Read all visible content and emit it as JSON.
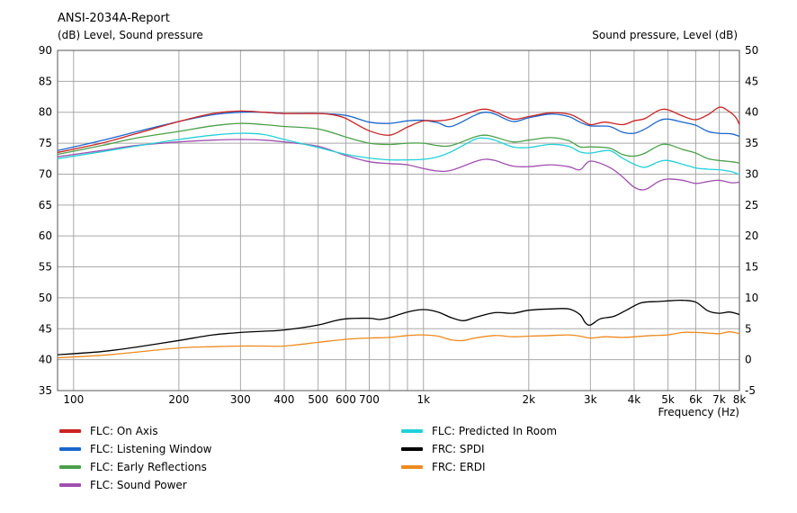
{
  "chart_data": {
    "type": "line",
    "title": "ANSI-2034A-Report",
    "ylabel_left": "(dB)  Level, Sound pressure",
    "ylabel_right": "Sound pressure, Level  (dB)",
    "xlabel": "Frequency  (Hz)",
    "x_scale": "log",
    "xlim": [
      90,
      8000
    ],
    "ylim_left": [
      35,
      90
    ],
    "ylim_right": [
      -5,
      50
    ],
    "grid": true,
    "legend_position": "bottom",
    "x_ticks": [
      {
        "v": 100,
        "label": "100"
      },
      {
        "v": 200,
        "label": "200"
      },
      {
        "v": 300,
        "label": "300"
      },
      {
        "v": 400,
        "label": "400"
      },
      {
        "v": 500,
        "label": "500"
      },
      {
        "v": 600,
        "label": "600"
      },
      {
        "v": 700,
        "label": "700"
      },
      {
        "v": 1000,
        "label": "1k"
      },
      {
        "v": 2000,
        "label": "2k"
      },
      {
        "v": 3000,
        "label": "3k"
      },
      {
        "v": 4000,
        "label": "4k"
      },
      {
        "v": 5000,
        "label": "5k"
      },
      {
        "v": 6000,
        "label": "6k"
      },
      {
        "v": 7000,
        "label": "7k"
      },
      {
        "v": 8000,
        "label": "8k"
      }
    ],
    "x_minor_grid": [
      800,
      900
    ],
    "y_left_ticks": [
      35,
      40,
      45,
      50,
      55,
      60,
      65,
      70,
      75,
      80,
      85,
      90
    ],
    "y_right_ticks": [
      -5,
      0,
      5,
      10,
      15,
      20,
      25,
      30,
      35,
      40,
      45,
      50
    ],
    "series": [
      {
        "name": "FLC: On Axis",
        "color": "#cc2222",
        "axis": "left",
        "points": [
          [
            90,
            73.5
          ],
          [
            120,
            75
          ],
          [
            150,
            76.5
          ],
          [
            200,
            78.5
          ],
          [
            250,
            79.8
          ],
          [
            300,
            80.2
          ],
          [
            350,
            80
          ],
          [
            400,
            79.8
          ],
          [
            500,
            79.8
          ],
          [
            550,
            79.6
          ],
          [
            600,
            79
          ],
          [
            700,
            77
          ],
          [
            800,
            76.3
          ],
          [
            900,
            77.6
          ],
          [
            1000,
            78.6
          ],
          [
            1100,
            78.6
          ],
          [
            1200,
            78.9
          ],
          [
            1400,
            80.2
          ],
          [
            1500,
            80.5
          ],
          [
            1600,
            80.1
          ],
          [
            1800,
            78.9
          ],
          [
            2000,
            79.3
          ],
          [
            2300,
            79.9
          ],
          [
            2600,
            79.7
          ],
          [
            2800,
            78.9
          ],
          [
            3000,
            78
          ],
          [
            3300,
            78.4
          ],
          [
            3700,
            78
          ],
          [
            4000,
            78.6
          ],
          [
            4300,
            79
          ],
          [
            4700,
            80.3
          ],
          [
            5000,
            80.4
          ],
          [
            5500,
            79.4
          ],
          [
            6000,
            78.8
          ],
          [
            6500,
            79.6
          ],
          [
            7000,
            80.8
          ],
          [
            7400,
            80.3
          ],
          [
            7800,
            79.2
          ],
          [
            8000,
            78
          ]
        ]
      },
      {
        "name": "FLC: Listening Window",
        "color": "#1a66cc",
        "axis": "left",
        "points": [
          [
            90,
            73.8
          ],
          [
            120,
            75.4
          ],
          [
            150,
            76.8
          ],
          [
            200,
            78.5
          ],
          [
            250,
            79.6
          ],
          [
            300,
            80
          ],
          [
            350,
            80
          ],
          [
            400,
            79.8
          ],
          [
            500,
            79.8
          ],
          [
            600,
            79.5
          ],
          [
            700,
            78.4
          ],
          [
            800,
            78.2
          ],
          [
            900,
            78.6
          ],
          [
            1000,
            78.7
          ],
          [
            1100,
            78.3
          ],
          [
            1200,
            77.7
          ],
          [
            1400,
            79.5
          ],
          [
            1500,
            80
          ],
          [
            1600,
            79.7
          ],
          [
            1800,
            78.5
          ],
          [
            2000,
            79.1
          ],
          [
            2300,
            79.7
          ],
          [
            2600,
            79.3
          ],
          [
            2800,
            78.4
          ],
          [
            3000,
            77.8
          ],
          [
            3400,
            77.7
          ],
          [
            3700,
            76.8
          ],
          [
            4000,
            76.6
          ],
          [
            4300,
            77.3
          ],
          [
            4700,
            78.6
          ],
          [
            5000,
            78.9
          ],
          [
            5500,
            78.4
          ],
          [
            6000,
            77.9
          ],
          [
            6500,
            76.9
          ],
          [
            7000,
            76.6
          ],
          [
            7600,
            76.5
          ],
          [
            8000,
            76.1
          ]
        ]
      },
      {
        "name": "FLC: Early Reflections",
        "color": "#4aa04a",
        "axis": "left",
        "points": [
          [
            90,
            73.2
          ],
          [
            120,
            74.6
          ],
          [
            150,
            75.8
          ],
          [
            200,
            76.9
          ],
          [
            250,
            77.8
          ],
          [
            300,
            78.2
          ],
          [
            350,
            78
          ],
          [
            400,
            77.7
          ],
          [
            500,
            77.3
          ],
          [
            600,
            76
          ],
          [
            700,
            75
          ],
          [
            800,
            74.8
          ],
          [
            900,
            75
          ],
          [
            1000,
            75
          ],
          [
            1100,
            74.6
          ],
          [
            1200,
            74.6
          ],
          [
            1400,
            76
          ],
          [
            1500,
            76.3
          ],
          [
            1600,
            76
          ],
          [
            1800,
            75.2
          ],
          [
            2000,
            75.5
          ],
          [
            2300,
            75.9
          ],
          [
            2600,
            75.4
          ],
          [
            2800,
            74.4
          ],
          [
            3000,
            74.4
          ],
          [
            3400,
            74.2
          ],
          [
            3700,
            73.2
          ],
          [
            4000,
            72.9
          ],
          [
            4300,
            73.4
          ],
          [
            4700,
            74.6
          ],
          [
            5000,
            74.8
          ],
          [
            5500,
            74
          ],
          [
            6000,
            73.4
          ],
          [
            6500,
            72.5
          ],
          [
            7000,
            72.2
          ],
          [
            7600,
            72
          ],
          [
            8000,
            71.8
          ]
        ]
      },
      {
        "name": "FLC: Sound Power",
        "color": "#a050b0",
        "axis": "left",
        "points": [
          [
            90,
            72.8
          ],
          [
            120,
            73.8
          ],
          [
            150,
            74.6
          ],
          [
            200,
            75.2
          ],
          [
            250,
            75.5
          ],
          [
            300,
            75.6
          ],
          [
            350,
            75.5
          ],
          [
            400,
            75.2
          ],
          [
            500,
            74.5
          ],
          [
            600,
            73
          ],
          [
            700,
            72
          ],
          [
            800,
            71.7
          ],
          [
            900,
            71.5
          ],
          [
            1000,
            70.9
          ],
          [
            1100,
            70.5
          ],
          [
            1200,
            70.6
          ],
          [
            1400,
            72
          ],
          [
            1500,
            72.4
          ],
          [
            1600,
            72.2
          ],
          [
            1800,
            71.3
          ],
          [
            2000,
            71.2
          ],
          [
            2300,
            71.5
          ],
          [
            2600,
            71.2
          ],
          [
            2800,
            70.7
          ],
          [
            3000,
            72.1
          ],
          [
            3400,
            71.1
          ],
          [
            3700,
            69.6
          ],
          [
            4000,
            67.9
          ],
          [
            4300,
            67.5
          ],
          [
            4700,
            68.8
          ],
          [
            5000,
            69.2
          ],
          [
            5500,
            69
          ],
          [
            6000,
            68.5
          ],
          [
            6500,
            68.8
          ],
          [
            7000,
            69
          ],
          [
            7600,
            68.6
          ],
          [
            8000,
            68.7
          ]
        ]
      },
      {
        "name": "FLC: Predicted In Room",
        "color": "#22d0d8",
        "axis": "left",
        "points": [
          [
            90,
            72.5
          ],
          [
            120,
            73.6
          ],
          [
            150,
            74.5
          ],
          [
            200,
            75.6
          ],
          [
            250,
            76.3
          ],
          [
            300,
            76.6
          ],
          [
            350,
            76.4
          ],
          [
            400,
            75.6
          ],
          [
            500,
            74.3
          ],
          [
            600,
            73.2
          ],
          [
            700,
            72.6
          ],
          [
            800,
            72.3
          ],
          [
            900,
            72.3
          ],
          [
            1000,
            72.4
          ],
          [
            1100,
            72.8
          ],
          [
            1200,
            73.6
          ],
          [
            1400,
            75.6
          ],
          [
            1500,
            75.8
          ],
          [
            1600,
            75.5
          ],
          [
            1800,
            74.4
          ],
          [
            2000,
            74.3
          ],
          [
            2300,
            74.8
          ],
          [
            2600,
            74.5
          ],
          [
            2800,
            73.6
          ],
          [
            3000,
            73.4
          ],
          [
            3400,
            73.8
          ],
          [
            3700,
            72.6
          ],
          [
            4000,
            71.6
          ],
          [
            4300,
            71.1
          ],
          [
            4700,
            72
          ],
          [
            5000,
            72.2
          ],
          [
            5500,
            71.6
          ],
          [
            6000,
            71
          ],
          [
            6500,
            70.8
          ],
          [
            7000,
            70.7
          ],
          [
            7600,
            70.4
          ],
          [
            8000,
            69.9
          ]
        ]
      },
      {
        "name": "FRC: SPDI",
        "color": "#000000",
        "axis": "right",
        "points": [
          [
            90,
            0.8
          ],
          [
            120,
            1.3
          ],
          [
            150,
            2
          ],
          [
            200,
            3.1
          ],
          [
            250,
            4
          ],
          [
            300,
            4.4
          ],
          [
            350,
            4.6
          ],
          [
            400,
            4.8
          ],
          [
            500,
            5.6
          ],
          [
            550,
            6.2
          ],
          [
            600,
            6.6
          ],
          [
            700,
            6.7
          ],
          [
            750,
            6.5
          ],
          [
            800,
            6.8
          ],
          [
            900,
            7.7
          ],
          [
            1000,
            8.1
          ],
          [
            1100,
            7.7
          ],
          [
            1200,
            6.8
          ],
          [
            1300,
            6.3
          ],
          [
            1400,
            6.8
          ],
          [
            1600,
            7.6
          ],
          [
            1800,
            7.5
          ],
          [
            2000,
            8
          ],
          [
            2300,
            8.2
          ],
          [
            2600,
            8.2
          ],
          [
            2800,
            7.3
          ],
          [
            2900,
            6
          ],
          [
            3000,
            5.6
          ],
          [
            3200,
            6.6
          ],
          [
            3500,
            7
          ],
          [
            3800,
            8
          ],
          [
            4200,
            9.2
          ],
          [
            4700,
            9.4
          ],
          [
            5000,
            9.5
          ],
          [
            5500,
            9.6
          ],
          [
            6000,
            9.3
          ],
          [
            6500,
            7.9
          ],
          [
            7000,
            7.5
          ],
          [
            7500,
            7.7
          ],
          [
            8000,
            7.3
          ]
        ]
      },
      {
        "name": "FRC: ERDI",
        "color": "#ee8a1e",
        "axis": "right",
        "points": [
          [
            90,
            0.3
          ],
          [
            120,
            0.7
          ],
          [
            150,
            1.2
          ],
          [
            200,
            1.9
          ],
          [
            250,
            2.1
          ],
          [
            300,
            2.2
          ],
          [
            350,
            2.2
          ],
          [
            400,
            2.2
          ],
          [
            500,
            2.8
          ],
          [
            600,
            3.3
          ],
          [
            700,
            3.5
          ],
          [
            800,
            3.6
          ],
          [
            900,
            3.9
          ],
          [
            1000,
            4
          ],
          [
            1100,
            3.8
          ],
          [
            1200,
            3.2
          ],
          [
            1300,
            3.1
          ],
          [
            1400,
            3.5
          ],
          [
            1600,
            3.9
          ],
          [
            1800,
            3.7
          ],
          [
            2000,
            3.8
          ],
          [
            2300,
            3.9
          ],
          [
            2600,
            4
          ],
          [
            2800,
            3.8
          ],
          [
            3000,
            3.5
          ],
          [
            3300,
            3.7
          ],
          [
            3700,
            3.6
          ],
          [
            4000,
            3.7
          ],
          [
            4500,
            3.9
          ],
          [
            5000,
            4
          ],
          [
            5500,
            4.4
          ],
          [
            6000,
            4.4
          ],
          [
            6500,
            4.3
          ],
          [
            7000,
            4.2
          ],
          [
            7500,
            4.5
          ],
          [
            8000,
            4.2
          ]
        ]
      }
    ]
  }
}
